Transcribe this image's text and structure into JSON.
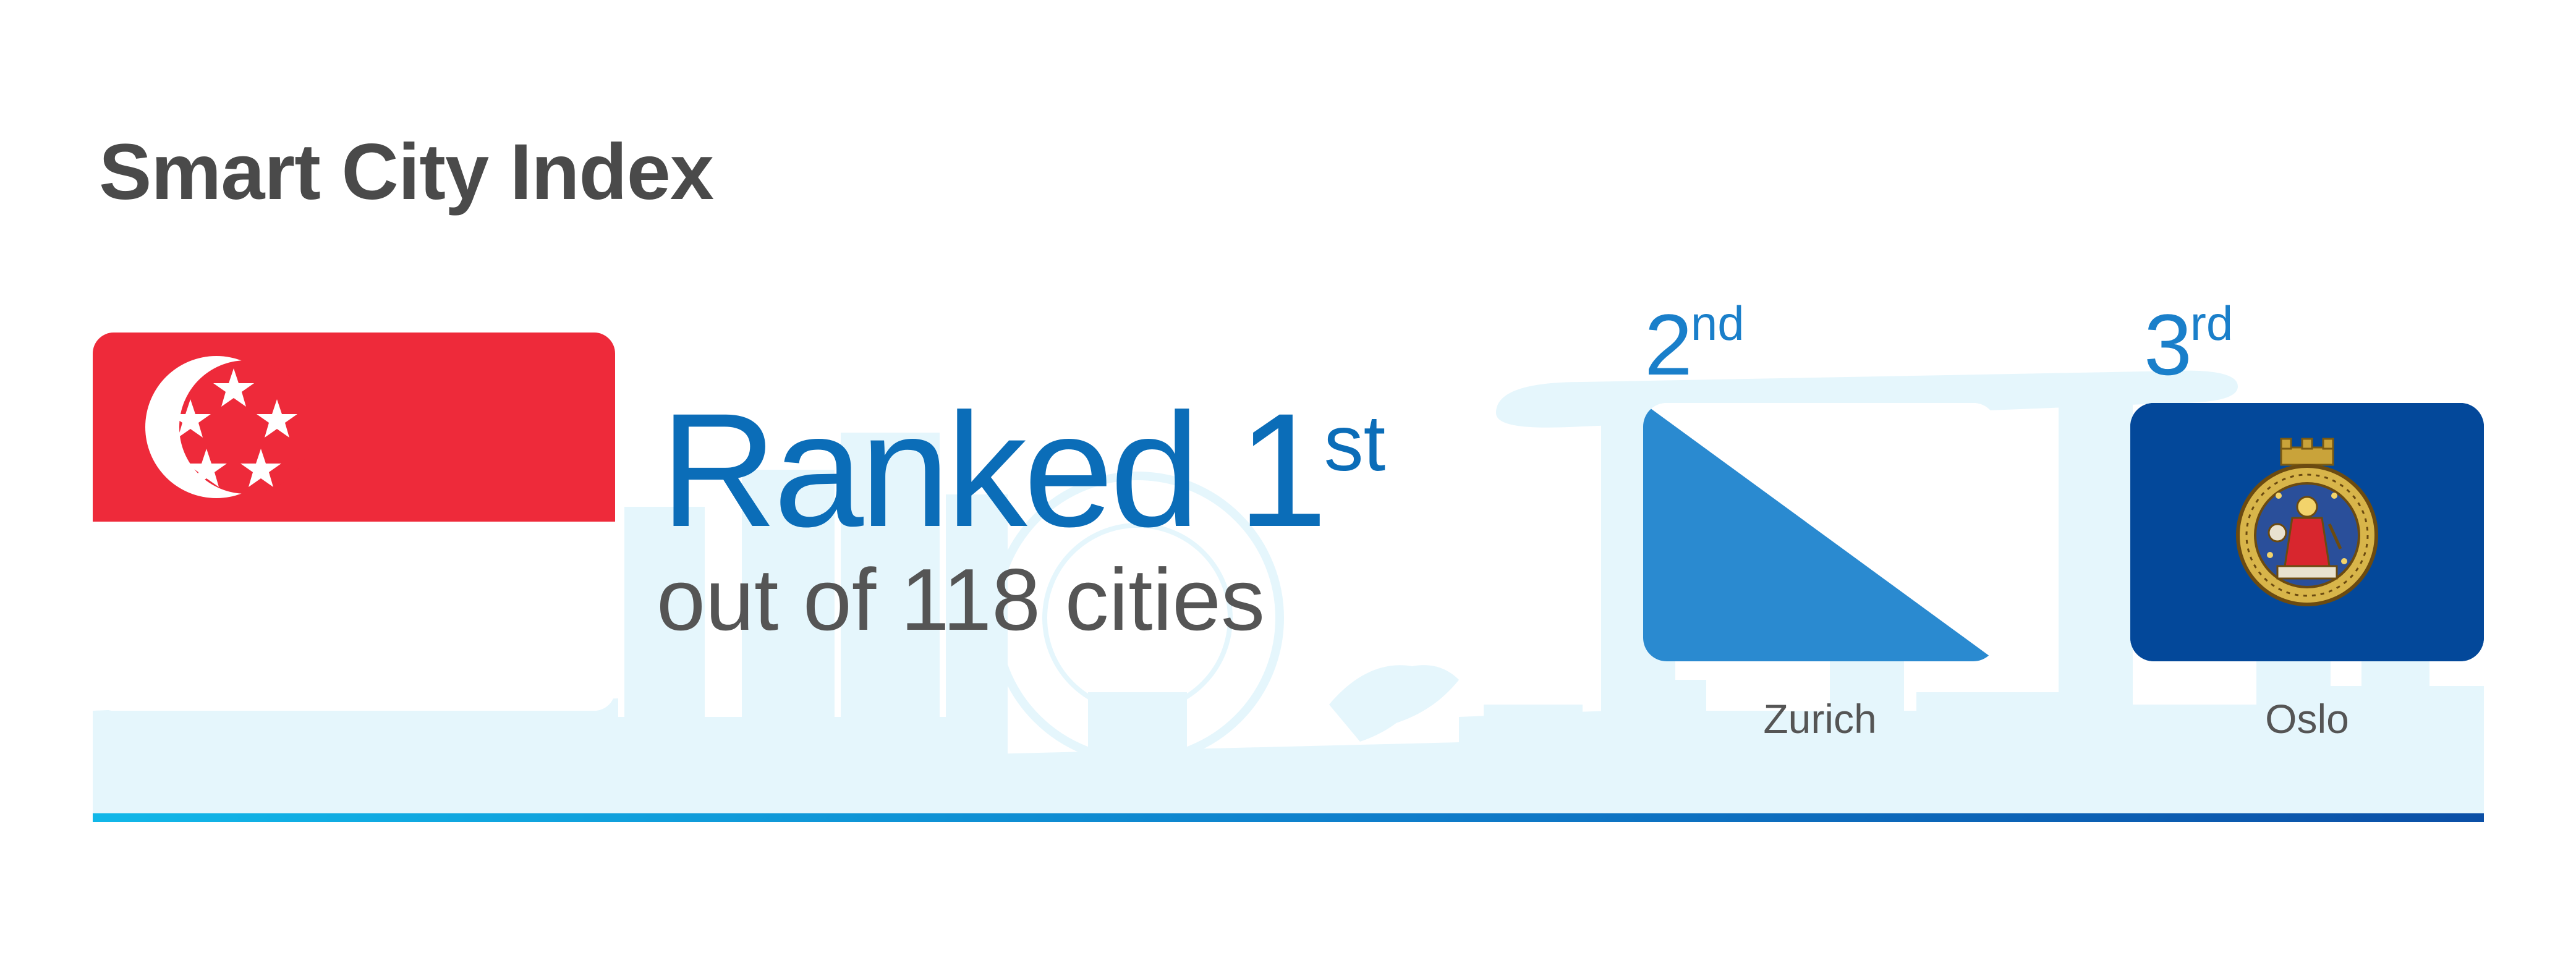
{
  "header": {
    "title": "Smart City Index"
  },
  "first_place": {
    "rank_text": "Ranked 1",
    "rank_suffix": "st",
    "subtitle": "out of 118 cities",
    "flag_icon": "singapore-flag-icon"
  },
  "runners_up": [
    {
      "rank_number": "2",
      "rank_suffix": "nd",
      "city": "Zurich",
      "flag_icon": "zurich-flag-icon"
    },
    {
      "rank_number": "3",
      "rank_suffix": "rd",
      "city": "Oslo",
      "flag_icon": "oslo-flag-icon"
    }
  ],
  "colors": {
    "title": "#4a4a4a",
    "rank_main": "#0b6db8",
    "rank_places": "#1a7fca",
    "singapore_red": "#ee2a3a",
    "zurich_blue": "#2a8ad0",
    "oslo_blue": "#03489a",
    "skyline": "#e4f6fc",
    "baseline_start": "#11b7e8",
    "baseline_end": "#0b4fa6"
  }
}
